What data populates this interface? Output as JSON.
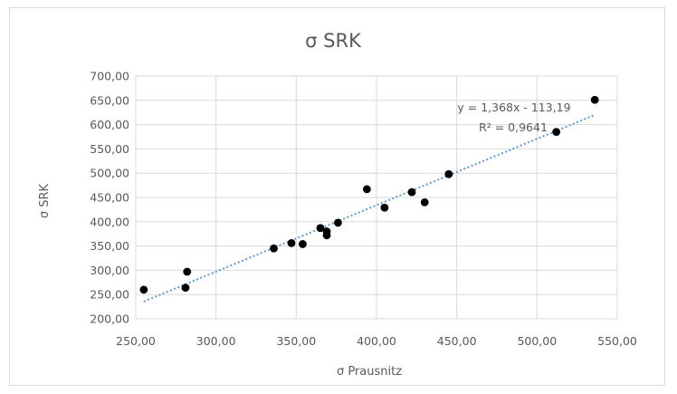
{
  "chart_data": {
    "type": "scatter",
    "title": "σ SRK",
    "xlabel": "σ Prausnitz",
    "ylabel": "σ SRK",
    "xlim": [
      250,
      550
    ],
    "ylim": [
      200,
      700
    ],
    "x_ticks": [
      250,
      300,
      350,
      400,
      450,
      500,
      550
    ],
    "y_ticks": [
      200,
      250,
      300,
      350,
      400,
      450,
      500,
      550,
      600,
      650,
      700
    ],
    "x_tick_labels": [
      "250,00",
      "300,00",
      "350,00",
      "400,00",
      "450,00",
      "500,00",
      "550,00"
    ],
    "y_tick_labels": [
      "200,00",
      "250,00",
      "300,00",
      "350,00",
      "400,00",
      "450,00",
      "500,00",
      "550,00",
      "600,00",
      "650,00",
      "700,00"
    ],
    "grid": true,
    "marker_color": "#000000",
    "trendline_color": "#5b9bd5",
    "points": [
      {
        "x": 255,
        "y": 260
      },
      {
        "x": 281,
        "y": 264
      },
      {
        "x": 282,
        "y": 297
      },
      {
        "x": 336,
        "y": 345
      },
      {
        "x": 347,
        "y": 356
      },
      {
        "x": 354,
        "y": 354
      },
      {
        "x": 365,
        "y": 387
      },
      {
        "x": 369,
        "y": 372
      },
      {
        "x": 369,
        "y": 380
      },
      {
        "x": 376,
        "y": 398
      },
      {
        "x": 394,
        "y": 467
      },
      {
        "x": 405,
        "y": 429
      },
      {
        "x": 422,
        "y": 461
      },
      {
        "x": 430,
        "y": 440
      },
      {
        "x": 445,
        "y": 498
      },
      {
        "x": 512,
        "y": 585
      },
      {
        "x": 536,
        "y": 651
      }
    ],
    "trendline": {
      "slope": 1.368,
      "intercept": -113.19,
      "x_range": [
        255,
        536
      ]
    },
    "annotations": {
      "equation": "y = 1,368x - 113,19",
      "r_squared": "R² = 0,9641"
    }
  }
}
